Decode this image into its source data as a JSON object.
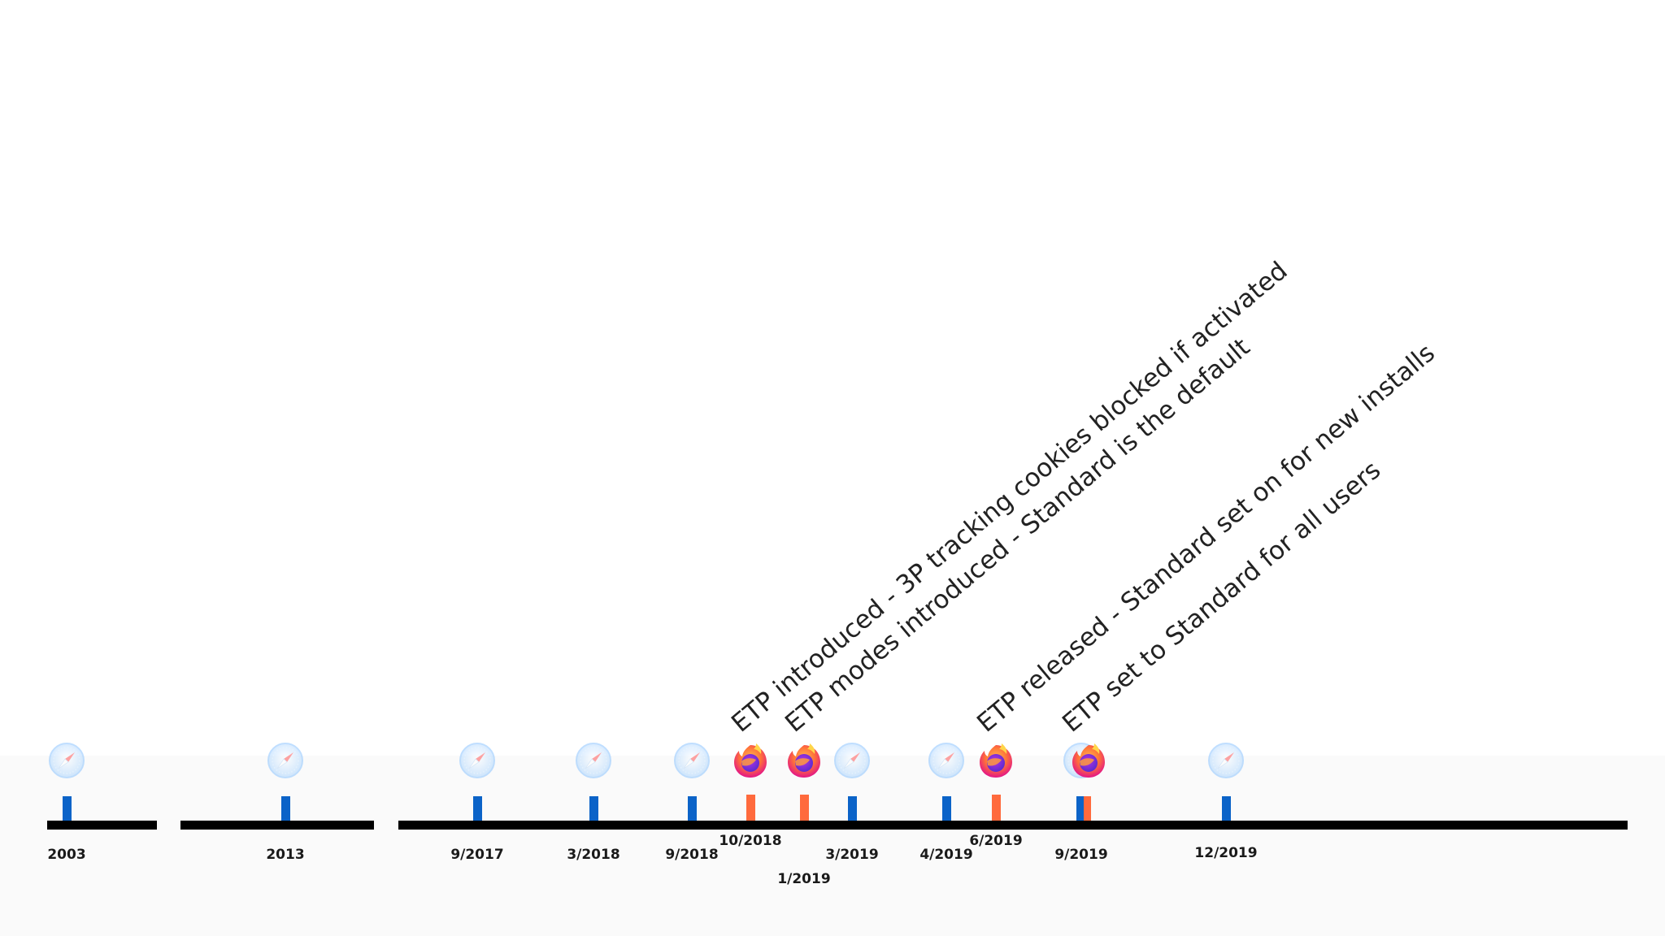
{
  "timeline": {
    "colors": {
      "safari": "#0b63c8",
      "firefox": "#ff6a3d",
      "axis": "#000000"
    },
    "events": [
      {
        "label": "2003",
        "browser": "safari",
        "icon": "safari-icon"
      },
      {
        "label": "2013",
        "browser": "safari",
        "icon": "safari-icon"
      },
      {
        "label": "9/2017",
        "browser": "safari",
        "icon": "safari-icon"
      },
      {
        "label": "3/2018",
        "browser": "safari",
        "icon": "safari-icon"
      },
      {
        "label": "9/2018",
        "browser": "safari",
        "icon": "safari-icon"
      },
      {
        "label": "10/2018",
        "browser": "firefox",
        "icon": "firefox-icon"
      },
      {
        "label": "1/2019",
        "browser": "firefox",
        "icon": "firefox-icon"
      },
      {
        "label": "3/2019",
        "browser": "safari",
        "icon": "safari-icon"
      },
      {
        "label": "4/2019",
        "browser": "safari",
        "icon": "safari-icon"
      },
      {
        "label": "6/2019",
        "browser": "firefox",
        "icon": "firefox-icon"
      },
      {
        "label": "9/2019",
        "browser": "both",
        "icon": "firefox-icon"
      },
      {
        "label": "12/2019",
        "browser": "safari",
        "icon": "safari-icon"
      }
    ],
    "annotations": [
      {
        "event": "10/2018",
        "text": "ETP introduced - 3P tracking cookies blocked if activated"
      },
      {
        "event": "1/2019",
        "text": "ETP modes introduced - Standard is the default"
      },
      {
        "event": "6/2019",
        "text": "ETP released - Standard set on for new installs"
      },
      {
        "event": "9/2019",
        "text": "ETP set to Standard for all users"
      }
    ]
  }
}
